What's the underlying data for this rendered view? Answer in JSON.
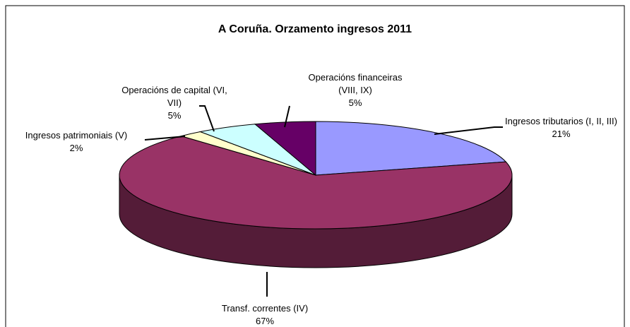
{
  "chart_data": {
    "type": "pie",
    "title": "A Coruña. Orzamento ingresos 2011",
    "categories": [
      "Ingresos tributarios (I, II, III)",
      "Transf. correntes (IV)",
      "Ingresos patrimoniais (V)",
      "Operacións de capital (VI, VII)",
      "Operacións financeiras (VIII, IX)"
    ],
    "values": [
      21,
      67,
      2,
      5,
      5
    ],
    "value_labels": [
      "21%",
      "67%",
      "2%",
      "5%",
      "5%"
    ],
    "colors": [
      "#9999ff",
      "#993366",
      "#ffffcc",
      "#ccffff",
      "#660066"
    ]
  }
}
